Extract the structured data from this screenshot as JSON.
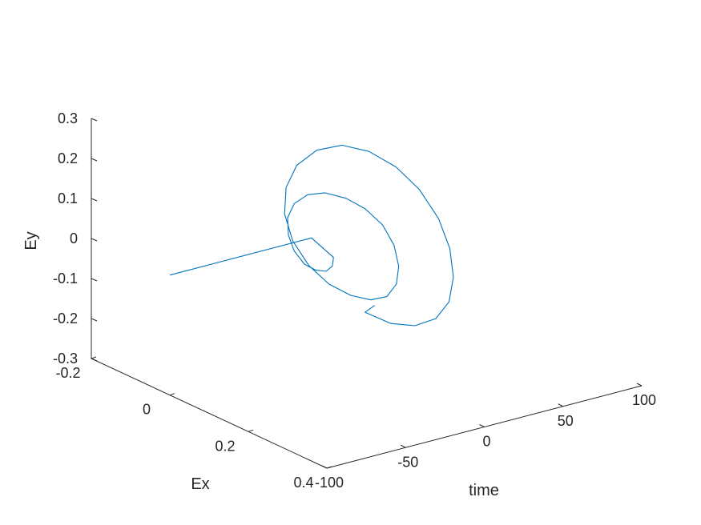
{
  "chart_data": {
    "type": "line",
    "projection": "3d",
    "series": [
      {
        "color": "#0072BD",
        "points": [
          [
            -100,
            0.0,
            0.0
          ],
          [
            -10,
            0.0,
            0.0
          ],
          [
            -9,
            0.052,
            -0.026
          ],
          [
            -8,
            0.045,
            -0.052
          ],
          [
            -7,
            0.025,
            -0.075
          ],
          [
            -6,
            -0.005,
            -0.087
          ],
          [
            -5,
            -0.038,
            -0.088
          ],
          [
            -4,
            -0.068,
            -0.07
          ],
          [
            -3,
            -0.087,
            -0.04
          ],
          [
            -2,
            -0.093,
            0.0
          ],
          [
            -1,
            -0.08,
            0.04
          ],
          [
            0,
            -0.05,
            0.075
          ],
          [
            1,
            -0.01,
            0.097
          ],
          [
            2,
            0.04,
            0.105
          ],
          [
            3,
            0.085,
            0.098
          ],
          [
            4,
            0.125,
            0.075
          ],
          [
            5,
            0.15,
            0.035
          ],
          [
            6,
            0.158,
            -0.015
          ],
          [
            7,
            0.148,
            -0.065
          ],
          [
            8,
            0.12,
            -0.11
          ],
          [
            9,
            0.075,
            -0.14
          ],
          [
            10,
            0.02,
            -0.155
          ],
          [
            11,
            -0.04,
            -0.155
          ],
          [
            12,
            -0.095,
            -0.135
          ],
          [
            13,
            -0.14,
            -0.095
          ],
          [
            14,
            -0.165,
            -0.04
          ],
          [
            15,
            -0.165,
            0.025
          ],
          [
            16,
            -0.142,
            0.09
          ],
          [
            17,
            -0.095,
            0.148
          ],
          [
            18,
            -0.035,
            0.187
          ],
          [
            19,
            0.03,
            0.2
          ],
          [
            20,
            0.095,
            0.19
          ],
          [
            21,
            0.15,
            0.158
          ],
          [
            22,
            0.195,
            0.105
          ],
          [
            23,
            0.22,
            0.04
          ],
          [
            24,
            0.225,
            -0.03
          ],
          [
            25,
            0.21,
            -0.1
          ],
          [
            26,
            0.172,
            -0.16
          ],
          [
            27,
            0.115,
            -0.205
          ],
          [
            28,
            0.05,
            -0.23
          ],
          [
            29,
            -0.02,
            -0.235
          ],
          [
            30,
            0.0,
            -0.21
          ]
        ]
      }
    ],
    "xlabel": "time",
    "ylabel": "Ex",
    "zlabel": "Ey",
    "xlim": [
      -100,
      100
    ],
    "ylim": [
      -0.2,
      0.4
    ],
    "zlim": [
      -0.3,
      0.3
    ],
    "xticks": [
      {
        "v": -100,
        "label": "-100"
      },
      {
        "v": -50,
        "label": "-50"
      },
      {
        "v": 0,
        "label": "0"
      },
      {
        "v": 50,
        "label": "50"
      },
      {
        "v": 100,
        "label": "100"
      }
    ],
    "yticks": [
      {
        "v": -0.2,
        "label": "-0.2"
      },
      {
        "v": 0,
        "label": "0"
      },
      {
        "v": 0.2,
        "label": "0.2"
      },
      {
        "v": 0.4,
        "label": "0.4"
      }
    ],
    "zticks": [
      {
        "v": -0.3,
        "label": "-0.3"
      },
      {
        "v": -0.2,
        "label": "-0.2"
      },
      {
        "v": -0.1,
        "label": "-0.1"
      },
      {
        "v": 0,
        "label": "0"
      },
      {
        "v": 0.1,
        "label": "0.1"
      },
      {
        "v": 0.2,
        "label": "0.2"
      },
      {
        "v": 0.3,
        "label": "0.3"
      }
    ],
    "grid": false,
    "legend": "none"
  }
}
